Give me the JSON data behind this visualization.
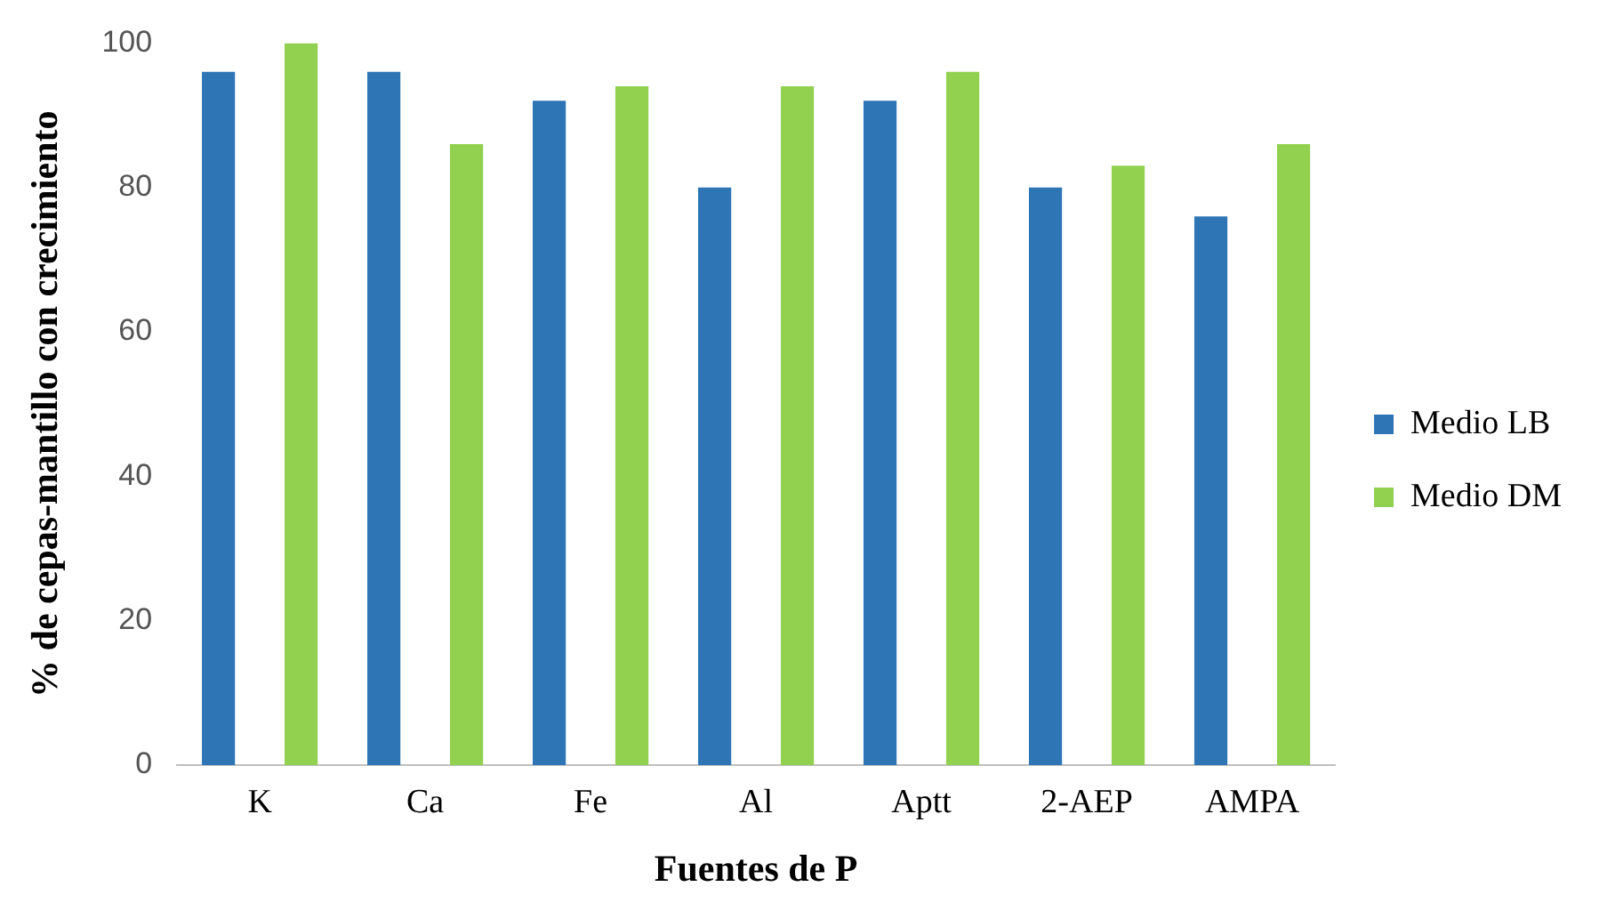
{
  "chart_data": {
    "type": "bar",
    "xlabel": "Fuentes de P",
    "ylabel": "% de cepas-mantillo con crecimiento",
    "categories": [
      "K",
      "Ca",
      "Fe",
      "Al",
      "Aptt",
      "2-AEP",
      "AMPA"
    ],
    "series": [
      {
        "name": "Medio LB",
        "color": "#2e75b6",
        "values": [
          96,
          96,
          92,
          80,
          92,
          80,
          76
        ]
      },
      {
        "name": "Medio DM",
        "color": "#92d050",
        "values": [
          100,
          86,
          94,
          94,
          96,
          83,
          86
        ]
      }
    ],
    "ylim": [
      0,
      100
    ],
    "yticks": [
      0,
      20,
      40,
      60,
      80,
      100
    ],
    "grid": false,
    "legend": "right"
  }
}
